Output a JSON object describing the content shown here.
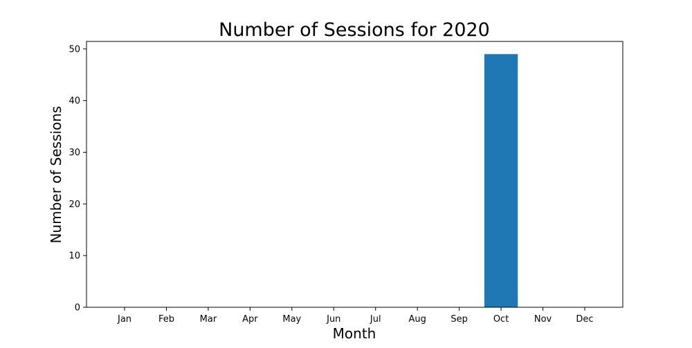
{
  "chart_data": {
    "type": "bar",
    "title": "Number of Sessions for 2020",
    "xlabel": "Month",
    "ylabel": "Number of Sessions",
    "categories": [
      "Jan",
      "Feb",
      "Mar",
      "Apr",
      "May",
      "Jun",
      "Jul",
      "Aug",
      "Sep",
      "Oct",
      "Nov",
      "Dec"
    ],
    "values": [
      0,
      0,
      0,
      0,
      0,
      0,
      0,
      0,
      0,
      49,
      0,
      0
    ],
    "ylim": [
      0,
      51.45
    ],
    "yticks": [
      0,
      10,
      20,
      30,
      40,
      50
    ],
    "grid": false,
    "legend": "none",
    "bar_color": "#1f77b4"
  }
}
